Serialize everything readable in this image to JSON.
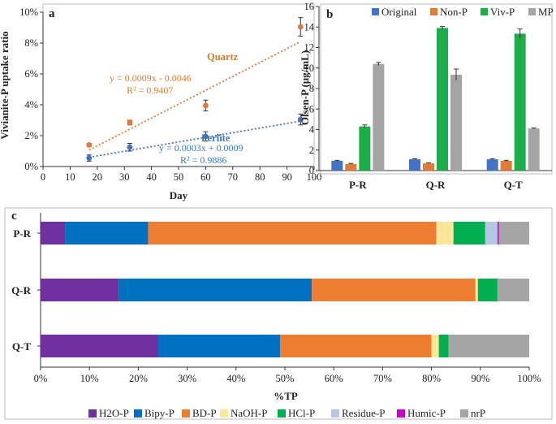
{
  "chart_data": [
    {
      "panel": "a",
      "type": "scatter",
      "xlabel": "Day",
      "ylabel": "Vivianite-P uptake ratio",
      "xlim": [
        0,
        100
      ],
      "ylim": [
        0,
        10
      ],
      "xticks": [
        "0",
        "10",
        "20",
        "30",
        "40",
        "50",
        "60",
        "70",
        "80",
        "90",
        "100"
      ],
      "yticks": [
        "0%",
        "2%",
        "4%",
        "6%",
        "8%",
        "10%"
      ],
      "series": [
        {
          "name": "Quartz",
          "color": "#E07B39",
          "x": [
            17,
            32,
            60,
            95
          ],
          "y": [
            1.4,
            2.85,
            3.95,
            9.05
          ],
          "err": [
            0.1,
            0.15,
            0.35,
            0.6
          ],
          "fit": {
            "slope": 0.0009,
            "intercept": -0.0046,
            "equation": "y = 0.0009x - 0.0046",
            "r2": "R² = 0.9407"
          }
        },
        {
          "name": "Perlite",
          "color": "#4472C4",
          "x": [
            17,
            32,
            60,
            95
          ],
          "y": [
            0.55,
            1.25,
            1.95,
            3.05
          ],
          "err": [
            0.2,
            0.25,
            0.3,
            0.35
          ],
          "fit": {
            "slope": 0.0003,
            "intercept": 0.0009,
            "equation": "y = 0.0003x + 0.0009",
            "r2": "R² = 0.9886"
          }
        }
      ]
    },
    {
      "panel": "b",
      "type": "bar",
      "ylabel": "Olsen-P (μg/mL)",
      "ylim": [
        0,
        16
      ],
      "yticks": [
        "0",
        "2",
        "4",
        "6",
        "8",
        "10",
        "12",
        "14",
        "16"
      ],
      "categories": [
        "P-R",
        "Q-R",
        "Q-T"
      ],
      "legend_position": "top",
      "series": [
        {
          "name": "Original",
          "color": "#4472C4",
          "values": [
            0.95,
            1.1,
            1.1
          ],
          "err": [
            0.05,
            0.05,
            0.05
          ]
        },
        {
          "name": "Non-P",
          "color": "#E07B39",
          "values": [
            0.65,
            0.7,
            0.95
          ],
          "err": [
            0.05,
            0.05,
            0.05
          ]
        },
        {
          "name": "Viv-P",
          "color": "#1FAD4B",
          "values": [
            4.3,
            13.9,
            13.35
          ],
          "err": [
            0.15,
            0.15,
            0.45
          ]
        },
        {
          "name": "MP",
          "color": "#A5A5A5",
          "values": [
            10.4,
            9.35,
            4.1
          ],
          "err": [
            0.15,
            0.55,
            0.05
          ]
        }
      ]
    },
    {
      "panel": "c",
      "type": "bar",
      "orientation": "horizontal",
      "stacked": true,
      "xlabel": "%TP",
      "xlim": [
        0,
        100
      ],
      "xticks": [
        "0%",
        "10%",
        "20%",
        "30%",
        "40%",
        "50%",
        "60%",
        "70%",
        "80%",
        "90%",
        "100%"
      ],
      "categories": [
        "P-R",
        "Q-R",
        "Q-T"
      ],
      "legend_position": "bottom",
      "series": [
        {
          "name": "H2O-P",
          "color": "#7030A0",
          "values": [
            5.0,
            16.0,
            24.0
          ]
        },
        {
          "name": "Bipy-P",
          "color": "#0070C0",
          "values": [
            17.0,
            39.5,
            25.0
          ]
        },
        {
          "name": "BD-P",
          "color": "#ED7D31",
          "values": [
            59.0,
            33.5,
            31.0
          ]
        },
        {
          "name": "NaOH-P",
          "color": "#FFE699",
          "values": [
            3.5,
            0.5,
            1.5
          ]
        },
        {
          "name": "HCl-P",
          "color": "#00B050",
          "values": [
            6.5,
            4.0,
            2.0
          ]
        },
        {
          "name": "Residue-P",
          "color": "#B4C7E7",
          "values": [
            2.5,
            0.0,
            0.0
          ]
        },
        {
          "name": "Humic-P",
          "color": "#CC00CC",
          "values": [
            0.3,
            0.0,
            0.0
          ]
        },
        {
          "name": "nrP",
          "color": "#A5A5A5",
          "values": [
            6.2,
            6.5,
            16.5
          ]
        }
      ]
    }
  ]
}
